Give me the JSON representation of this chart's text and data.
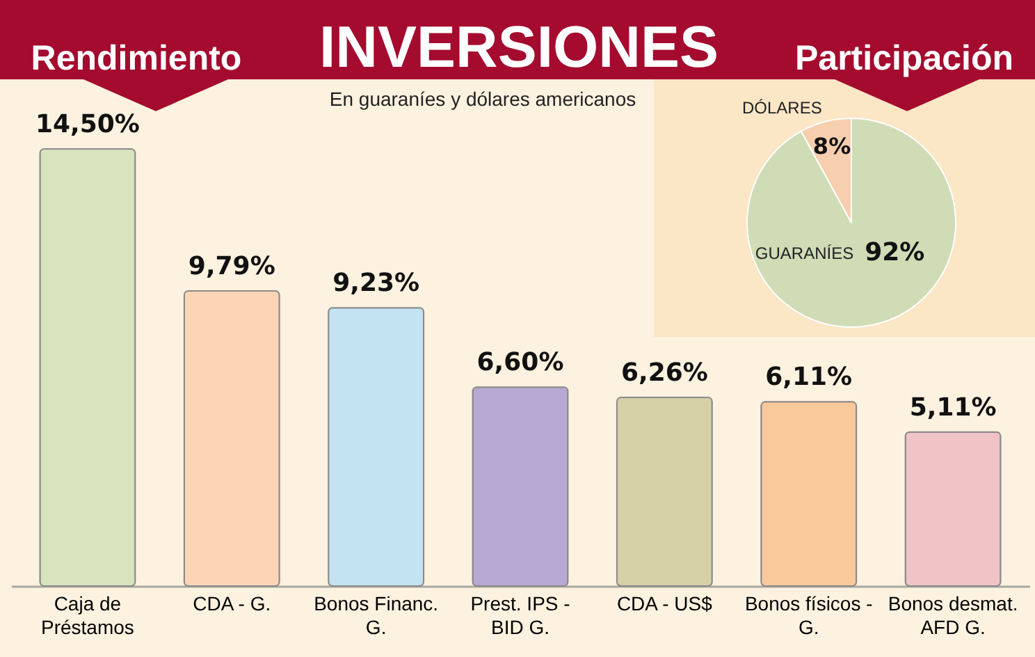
{
  "chart_data": [
    {
      "type": "other",
      "title": "INVERSIONES",
      "subtitle": "En guaraníes y dólares americanos"
    },
    {
      "type": "bar",
      "title": "Rendimiento",
      "categories": [
        "Caja de Préstamos",
        "CDA - G.",
        "Bonos Financ. G.",
        "Prest. IPS - BID G.",
        "CDA - US$",
        "Bonos físicos - G.",
        "Bonos desmat. AFD G."
      ],
      "values": [
        14.5,
        9.79,
        9.23,
        6.6,
        6.26,
        6.11,
        5.11
      ],
      "value_labels": [
        "14,50%",
        "9,79%",
        "9,23%",
        "6,60%",
        "6,26%",
        "6,11%",
        "5,11%"
      ],
      "colors": [
        "#d7e4bd",
        "#fcd5b5",
        "#c3e3f0",
        "#b8a9d4",
        "#d5d0a6",
        "#f9c89b",
        "#f0c3c7"
      ]
    },
    {
      "type": "pie",
      "title": "Participación",
      "categories": [
        "GUARANÍES",
        "DÓLARES"
      ],
      "values": [
        92,
        8
      ],
      "value_labels": [
        "92%",
        "8%"
      ],
      "colors": [
        "#cfdcb6",
        "#f7cfae"
      ]
    }
  ]
}
